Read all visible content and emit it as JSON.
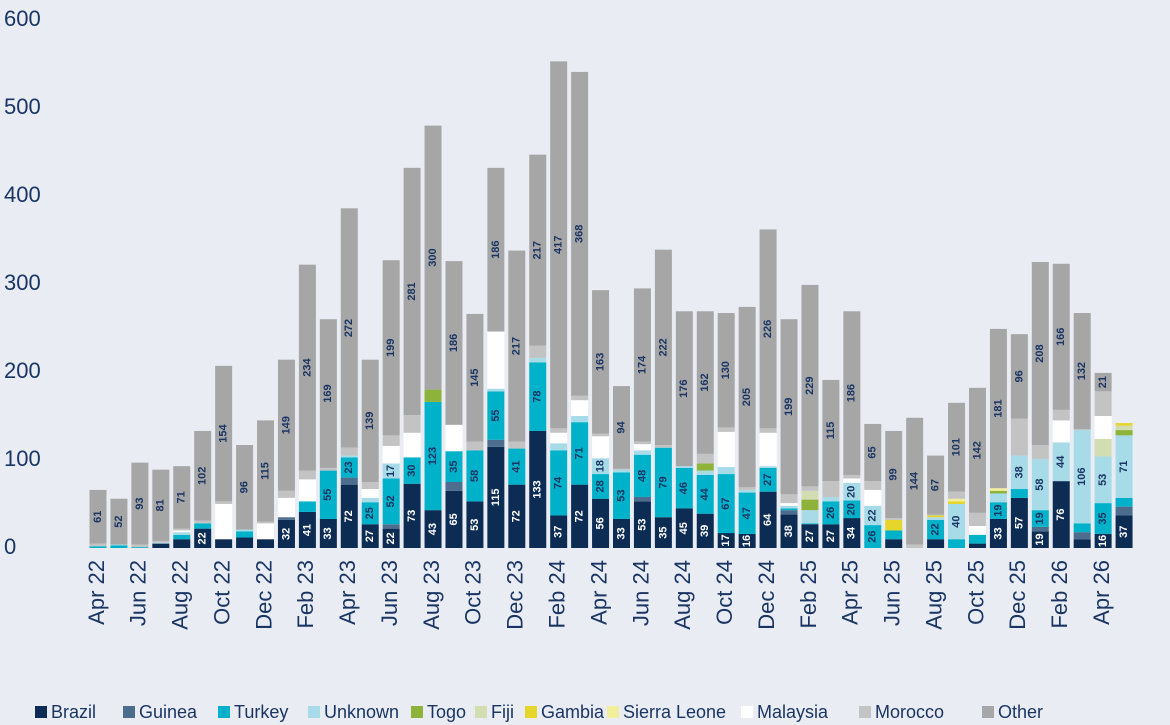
{
  "chart_data": {
    "type": "stacked_bar",
    "categories": [
      "Apr 22",
      null,
      "Jun 22",
      null,
      "Aug 22",
      null,
      "Oct 22",
      null,
      "Dec 22",
      null,
      "Feb 23",
      null,
      "Apr 23",
      null,
      "Jun 23",
      null,
      "Aug 23",
      null,
      "Oct 23",
      null,
      "Dec 23",
      null,
      "Feb 24",
      null,
      "Apr 24",
      null,
      "Jun 24",
      null,
      "Aug 24",
      null,
      "Oct 24",
      null,
      "Dec 24",
      null,
      "Feb 25",
      null,
      "Apr 25",
      null,
      "Jun 25",
      null,
      "Aug 25",
      null,
      "Oct 25",
      null,
      "Dec 25",
      null,
      "Feb 26",
      null,
      "Apr 26",
      null
    ],
    "ylim": [
      0,
      600
    ],
    "yticks": [
      0,
      100,
      200,
      300,
      400,
      500,
      600
    ],
    "grid": false,
    "legend": "bottom",
    "series": [
      {
        "name": "Brazil",
        "color": "#0d2c54",
        "values": [
          0,
          0,
          0,
          5,
          10,
          22,
          10,
          12,
          10,
          32,
          41,
          33,
          72,
          27,
          22,
          73,
          43,
          65,
          53,
          115,
          72,
          133,
          37,
          72,
          56,
          33,
          53,
          35,
          45,
          39,
          17,
          16,
          64,
          38,
          27,
          27,
          34,
          0,
          10,
          0,
          10,
          0,
          5,
          33,
          57,
          19,
          76,
          10,
          16,
          37
        ]
      },
      {
        "name": "Guinea",
        "color": "#4d6d8e",
        "values": [
          0,
          0,
          0,
          0,
          0,
          0,
          0,
          0,
          0,
          3,
          0,
          0,
          8,
          0,
          5,
          0,
          0,
          10,
          0,
          8,
          0,
          0,
          0,
          0,
          0,
          0,
          5,
          0,
          0,
          0,
          0,
          0,
          0,
          5,
          0,
          0,
          0,
          0,
          0,
          0,
          0,
          0,
          0,
          0,
          0,
          5,
          0,
          8,
          0,
          10
        ]
      },
      {
        "name": "Turkey",
        "color": "#00b2c9",
        "values": [
          2,
          3,
          1,
          0,
          5,
          6,
          0,
          7,
          0,
          0,
          12,
          55,
          23,
          25,
          52,
          30,
          123,
          35,
          58,
          55,
          41,
          78,
          74,
          71,
          28,
          53,
          48,
          79,
          46,
          44,
          67,
          47,
          27,
          2,
          1,
          26,
          20,
          26,
          10,
          0,
          22,
          10,
          10,
          19,
          10,
          19,
          0,
          10,
          35,
          10
        ]
      },
      {
        "name": "Unknown",
        "color": "#a8dbe8",
        "values": [
          0,
          1,
          0,
          1,
          3,
          0,
          0,
          2,
          0,
          0,
          0,
          0,
          2,
          5,
          17,
          0,
          0,
          0,
          0,
          3,
          0,
          5,
          8,
          7,
          18,
          3,
          5,
          0,
          2,
          5,
          8,
          3,
          2,
          3,
          15,
          5,
          20,
          22,
          0,
          0,
          3,
          40,
          0,
          10,
          38,
          58,
          44,
          106,
          53,
          71
        ]
      },
      {
        "name": "Togo",
        "color": "#8db33a",
        "values": [
          0,
          0,
          0,
          0,
          0,
          0,
          0,
          0,
          0,
          0,
          0,
          0,
          0,
          0,
          0,
          0,
          14,
          0,
          0,
          0,
          0,
          0,
          0,
          0,
          0,
          0,
          0,
          0,
          0,
          8,
          0,
          0,
          0,
          0,
          12,
          0,
          0,
          0,
          0,
          0,
          0,
          0,
          0,
          3,
          0,
          0,
          0,
          0,
          0,
          6
        ]
      },
      {
        "name": "Fiji",
        "color": "#d3ddb2",
        "values": [
          0,
          0,
          0,
          0,
          0,
          0,
          0,
          0,
          0,
          0,
          0,
          0,
          0,
          0,
          0,
          0,
          0,
          0,
          0,
          0,
          0,
          0,
          0,
          0,
          0,
          0,
          0,
          0,
          0,
          0,
          0,
          0,
          0,
          0,
          10,
          0,
          0,
          0,
          0,
          0,
          0,
          0,
          0,
          0,
          0,
          0,
          0,
          0,
          20,
          5
        ]
      },
      {
        "name": "Gambia",
        "color": "#e6d52b",
        "values": [
          0,
          0,
          0,
          0,
          0,
          0,
          0,
          0,
          0,
          0,
          0,
          0,
          0,
          0,
          0,
          0,
          0,
          0,
          0,
          0,
          0,
          0,
          0,
          0,
          0,
          0,
          0,
          0,
          0,
          0,
          0,
          0,
          0,
          0,
          0,
          0,
          0,
          0,
          12,
          0,
          2,
          3,
          0,
          0,
          0,
          0,
          0,
          0,
          0,
          3
        ]
      },
      {
        "name": "Sierra Leone",
        "color": "#f3ee9c",
        "values": [
          0,
          0,
          0,
          0,
          0,
          0,
          0,
          0,
          0,
          0,
          0,
          0,
          0,
          0,
          0,
          0,
          0,
          0,
          0,
          0,
          0,
          0,
          0,
          0,
          0,
          0,
          0,
          0,
          0,
          0,
          0,
          0,
          0,
          0,
          0,
          0,
          0,
          0,
          0,
          0,
          0,
          3,
          0,
          3,
          0,
          0,
          0,
          0,
          0,
          0
        ]
      },
      {
        "name": "Malaysia",
        "color": "#ffffff",
        "values": [
          0,
          0,
          0,
          0,
          2,
          0,
          40,
          0,
          18,
          22,
          25,
          0,
          0,
          10,
          20,
          28,
          0,
          30,
          0,
          65,
          0,
          0,
          12,
          18,
          25,
          0,
          7,
          0,
          0,
          0,
          40,
          0,
          38,
          3,
          0,
          0,
          5,
          18,
          0,
          0,
          0,
          0,
          10,
          0,
          0,
          0,
          25,
          0,
          26,
          0
        ]
      },
      {
        "name": "Morocco",
        "color": "#c3c3c3",
        "values": [
          3,
          0,
          3,
          2,
          2,
          3,
          3,
          0,
          2,
          8,
          10,
          3,
          9,
          8,
          12,
          20,
          0,
          0,
          10,
          0,
          8,
          14,
          5,
          5,
          3,
          1,
          3,
          3,
          0,
          11,
          5,
          3,
          5,
          10,
          5,
          18,
          4,
          10,
          2,
          4,
          1,
          8,
          15,
          0,
          42,
          16,
          12,
          1,
          28,
          0
        ]
      },
      {
        "name": "Other",
        "color": "#a6a6a6",
        "values": [
          61,
          52,
          93,
          81,
          71,
          102,
          154,
          96,
          115,
          149,
          234,
          169,
          272,
          139,
          199,
          281,
          300,
          186,
          145,
          186,
          217,
          217,
          417,
          368,
          163,
          94,
          174,
          222,
          176,
          162,
          130,
          205,
          226,
          199,
          229,
          115,
          186,
          65,
          99,
          144,
          67,
          101,
          142,
          181,
          96,
          208,
          166,
          132,
          21,
          0
        ]
      }
    ]
  }
}
